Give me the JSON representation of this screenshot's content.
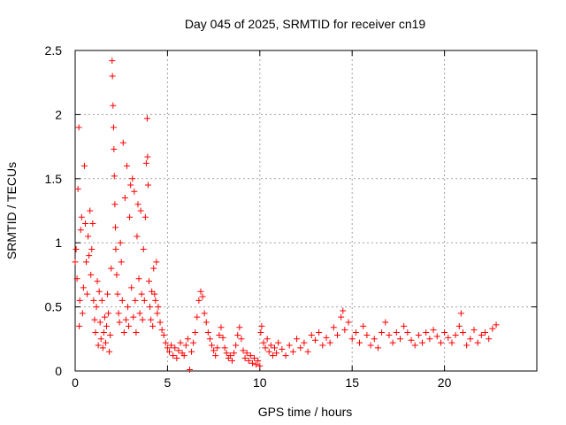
{
  "chart_data": {
    "type": "scatter",
    "title": "Day 045 of 2025, SRMTID for receiver cn19",
    "xlabel": "GPS time / hours",
    "ylabel": "SRMTID / TECUs",
    "xlim": [
      0,
      25
    ],
    "ylim": [
      0,
      2.5
    ],
    "xticks": [
      0,
      5,
      10,
      15,
      20
    ],
    "xtick_labels": [
      "0",
      "5",
      "10",
      "15",
      "20"
    ],
    "yticks": [
      0,
      0.5,
      1,
      1.5,
      2,
      2.5
    ],
    "ytick_labels": [
      "0",
      "0.5",
      "1",
      "1.5",
      "2",
      "2.5"
    ],
    "grid": true,
    "marker": "+",
    "series": [
      {
        "name": "SRMTID",
        "color": "#ff0000",
        "points": [
          [
            0.0,
            0.85
          ],
          [
            0.05,
            0.95
          ],
          [
            0.1,
            0.72
          ],
          [
            0.15,
            1.42
          ],
          [
            0.2,
            1.9
          ],
          [
            0.22,
            0.35
          ],
          [
            0.25,
            0.55
          ],
          [
            0.3,
            1.1
          ],
          [
            0.35,
            1.2
          ],
          [
            0.4,
            0.45
          ],
          [
            0.45,
            0.65
          ],
          [
            0.5,
            1.6
          ],
          [
            0.55,
            1.15
          ],
          [
            0.6,
            0.85
          ],
          [
            0.65,
            0.6
          ],
          [
            0.7,
            1.05
          ],
          [
            0.75,
            0.9
          ],
          [
            0.8,
            1.25
          ],
          [
            0.85,
            0.75
          ],
          [
            0.9,
            0.95
          ],
          [
            0.95,
            1.15
          ],
          [
            1.0,
            0.55
          ],
          [
            1.05,
            0.4
          ],
          [
            1.1,
            0.3
          ],
          [
            1.15,
            0.5
          ],
          [
            1.2,
            0.7
          ],
          [
            1.25,
            0.2
          ],
          [
            1.3,
            0.62
          ],
          [
            1.35,
            0.38
          ],
          [
            1.4,
            0.25
          ],
          [
            1.45,
            0.55
          ],
          [
            1.5,
            0.18
          ],
          [
            1.55,
            0.3
          ],
          [
            1.6,
            0.42
          ],
          [
            1.65,
            0.22
          ],
          [
            1.7,
            0.35
          ],
          [
            1.75,
            0.6
          ],
          [
            1.8,
            0.45
          ],
          [
            1.85,
            0.15
          ],
          [
            1.9,
            0.28
          ],
          [
            1.95,
            0.8
          ],
          [
            2.0,
            2.42
          ],
          [
            2.02,
            2.3
          ],
          [
            2.05,
            2.07
          ],
          [
            2.08,
            1.9
          ],
          [
            2.1,
            1.73
          ],
          [
            2.12,
            1.52
          ],
          [
            2.15,
            1.3
          ],
          [
            2.18,
            1.12
          ],
          [
            2.2,
            0.95
          ],
          [
            2.25,
            0.75
          ],
          [
            2.3,
            0.6
          ],
          [
            2.35,
            0.45
          ],
          [
            2.4,
            0.38
          ],
          [
            2.45,
            1.0
          ],
          [
            2.5,
            0.85
          ],
          [
            2.55,
            0.55
          ],
          [
            2.6,
            1.78
          ],
          [
            2.65,
            0.3
          ],
          [
            2.7,
            1.35
          ],
          [
            2.75,
            0.4
          ],
          [
            2.8,
            1.6
          ],
          [
            2.85,
            0.5
          ],
          [
            2.9,
            0.35
          ],
          [
            2.95,
            1.2
          ],
          [
            3.0,
            1.45
          ],
          [
            3.05,
            0.65
          ],
          [
            3.1,
            1.5
          ],
          [
            3.15,
            0.42
          ],
          [
            3.2,
            1.4
          ],
          [
            3.25,
            0.55
          ],
          [
            3.3,
            0.3
          ],
          [
            3.35,
            1.05
          ],
          [
            3.4,
            1.3
          ],
          [
            3.45,
            0.72
          ],
          [
            3.5,
            0.45
          ],
          [
            3.55,
            1.25
          ],
          [
            3.6,
            0.6
          ],
          [
            3.65,
            0.4
          ],
          [
            3.7,
            0.95
          ],
          [
            3.75,
            0.55
          ],
          [
            3.8,
            1.2
          ],
          [
            3.85,
            1.62
          ],
          [
            3.9,
            1.97
          ],
          [
            3.92,
            1.67
          ],
          [
            3.95,
            1.45
          ],
          [
            4.0,
            0.7
          ],
          [
            4.05,
            0.5
          ],
          [
            4.1,
            0.4
          ],
          [
            4.15,
            0.62
          ],
          [
            4.2,
            0.35
          ],
          [
            4.25,
            0.8
          ],
          [
            4.3,
            0.6
          ],
          [
            4.35,
            0.55
          ],
          [
            4.4,
            0.85
          ],
          [
            4.45,
            0.45
          ],
          [
            4.5,
            0.5
          ],
          [
            4.6,
            0.38
          ],
          [
            4.7,
            0.32
          ],
          [
            4.8,
            0.28
          ],
          [
            4.9,
            0.22
          ],
          [
            5.0,
            0.18
          ],
          [
            5.1,
            0.15
          ],
          [
            5.2,
            0.2
          ],
          [
            5.3,
            0.12
          ],
          [
            5.4,
            0.18
          ],
          [
            5.5,
            0.1
          ],
          [
            5.6,
            0.16
          ],
          [
            5.7,
            0.22
          ],
          [
            5.8,
            0.14
          ],
          [
            5.9,
            0.12
          ],
          [
            6.0,
            0.2
          ],
          [
            6.1,
            0.25
          ],
          [
            6.2,
            0.01
          ],
          [
            6.3,
            0.15
          ],
          [
            6.4,
            0.22
          ],
          [
            6.5,
            0.3
          ],
          [
            6.6,
            0.42
          ],
          [
            6.7,
            0.55
          ],
          [
            6.8,
            0.62
          ],
          [
            6.9,
            0.58
          ],
          [
            7.0,
            0.45
          ],
          [
            7.1,
            0.38
          ],
          [
            7.2,
            0.3
          ],
          [
            7.3,
            0.25
          ],
          [
            7.4,
            0.2
          ],
          [
            7.5,
            0.16
          ],
          [
            7.6,
            0.12
          ],
          [
            7.7,
            0.18
          ],
          [
            7.8,
            0.28
          ],
          [
            7.9,
            0.34
          ],
          [
            8.0,
            0.26
          ],
          [
            8.1,
            0.18
          ],
          [
            8.2,
            0.14
          ],
          [
            8.3,
            0.1
          ],
          [
            8.4,
            0.12
          ],
          [
            8.5,
            0.08
          ],
          [
            8.6,
            0.14
          ],
          [
            8.7,
            0.2
          ],
          [
            8.8,
            0.28
          ],
          [
            8.9,
            0.34
          ],
          [
            9.0,
            0.25
          ],
          [
            9.1,
            0.16
          ],
          [
            9.2,
            0.1
          ],
          [
            9.3,
            0.14
          ],
          [
            9.4,
            0.08
          ],
          [
            9.5,
            0.12
          ],
          [
            9.6,
            0.06
          ],
          [
            9.7,
            0.1
          ],
          [
            9.8,
            0.05
          ],
          [
            9.9,
            0.08
          ],
          [
            10.0,
            0.04
          ],
          [
            10.05,
            0.3
          ],
          [
            10.1,
            0.35
          ],
          [
            10.2,
            0.22
          ],
          [
            10.3,
            0.18
          ],
          [
            10.4,
            0.25
          ],
          [
            10.5,
            0.15
          ],
          [
            10.6,
            0.2
          ],
          [
            10.7,
            0.12
          ],
          [
            10.8,
            0.18
          ],
          [
            10.9,
            0.14
          ],
          [
            11.0,
            0.22
          ],
          [
            11.2,
            0.17
          ],
          [
            11.4,
            0.12
          ],
          [
            11.6,
            0.2
          ],
          [
            11.8,
            0.15
          ],
          [
            12.0,
            0.25
          ],
          [
            12.2,
            0.18
          ],
          [
            12.4,
            0.22
          ],
          [
            12.6,
            0.15
          ],
          [
            12.8,
            0.28
          ],
          [
            13.0,
            0.24
          ],
          [
            13.2,
            0.3
          ],
          [
            13.4,
            0.2
          ],
          [
            13.6,
            0.26
          ],
          [
            13.8,
            0.22
          ],
          [
            14.0,
            0.34
          ],
          [
            14.2,
            0.28
          ],
          [
            14.4,
            0.42
          ],
          [
            14.5,
            0.47
          ],
          [
            14.6,
            0.32
          ],
          [
            14.8,
            0.38
          ],
          [
            15.0,
            0.25
          ],
          [
            15.2,
            0.3
          ],
          [
            15.4,
            0.22
          ],
          [
            15.6,
            0.35
          ],
          [
            15.8,
            0.28
          ],
          [
            16.0,
            0.2
          ],
          [
            16.2,
            0.25
          ],
          [
            16.4,
            0.18
          ],
          [
            16.6,
            0.3
          ],
          [
            16.8,
            0.38
          ],
          [
            17.0,
            0.28
          ],
          [
            17.2,
            0.22
          ],
          [
            17.4,
            0.3
          ],
          [
            17.6,
            0.25
          ],
          [
            17.8,
            0.35
          ],
          [
            18.0,
            0.3
          ],
          [
            18.2,
            0.24
          ],
          [
            18.4,
            0.2
          ],
          [
            18.6,
            0.28
          ],
          [
            18.8,
            0.22
          ],
          [
            19.0,
            0.3
          ],
          [
            19.2,
            0.25
          ],
          [
            19.4,
            0.32
          ],
          [
            19.6,
            0.27
          ],
          [
            19.8,
            0.22
          ],
          [
            20.0,
            0.3
          ],
          [
            20.2,
            0.26
          ],
          [
            20.4,
            0.22
          ],
          [
            20.6,
            0.28
          ],
          [
            20.8,
            0.35
          ],
          [
            20.9,
            0.45
          ],
          [
            21.0,
            0.3
          ],
          [
            21.2,
            0.2
          ],
          [
            21.4,
            0.25
          ],
          [
            21.6,
            0.32
          ],
          [
            21.8,
            0.22
          ],
          [
            22.0,
            0.28
          ],
          [
            22.2,
            0.3
          ],
          [
            22.4,
            0.25
          ],
          [
            22.6,
            0.33
          ],
          [
            22.8,
            0.36
          ]
        ]
      }
    ]
  }
}
